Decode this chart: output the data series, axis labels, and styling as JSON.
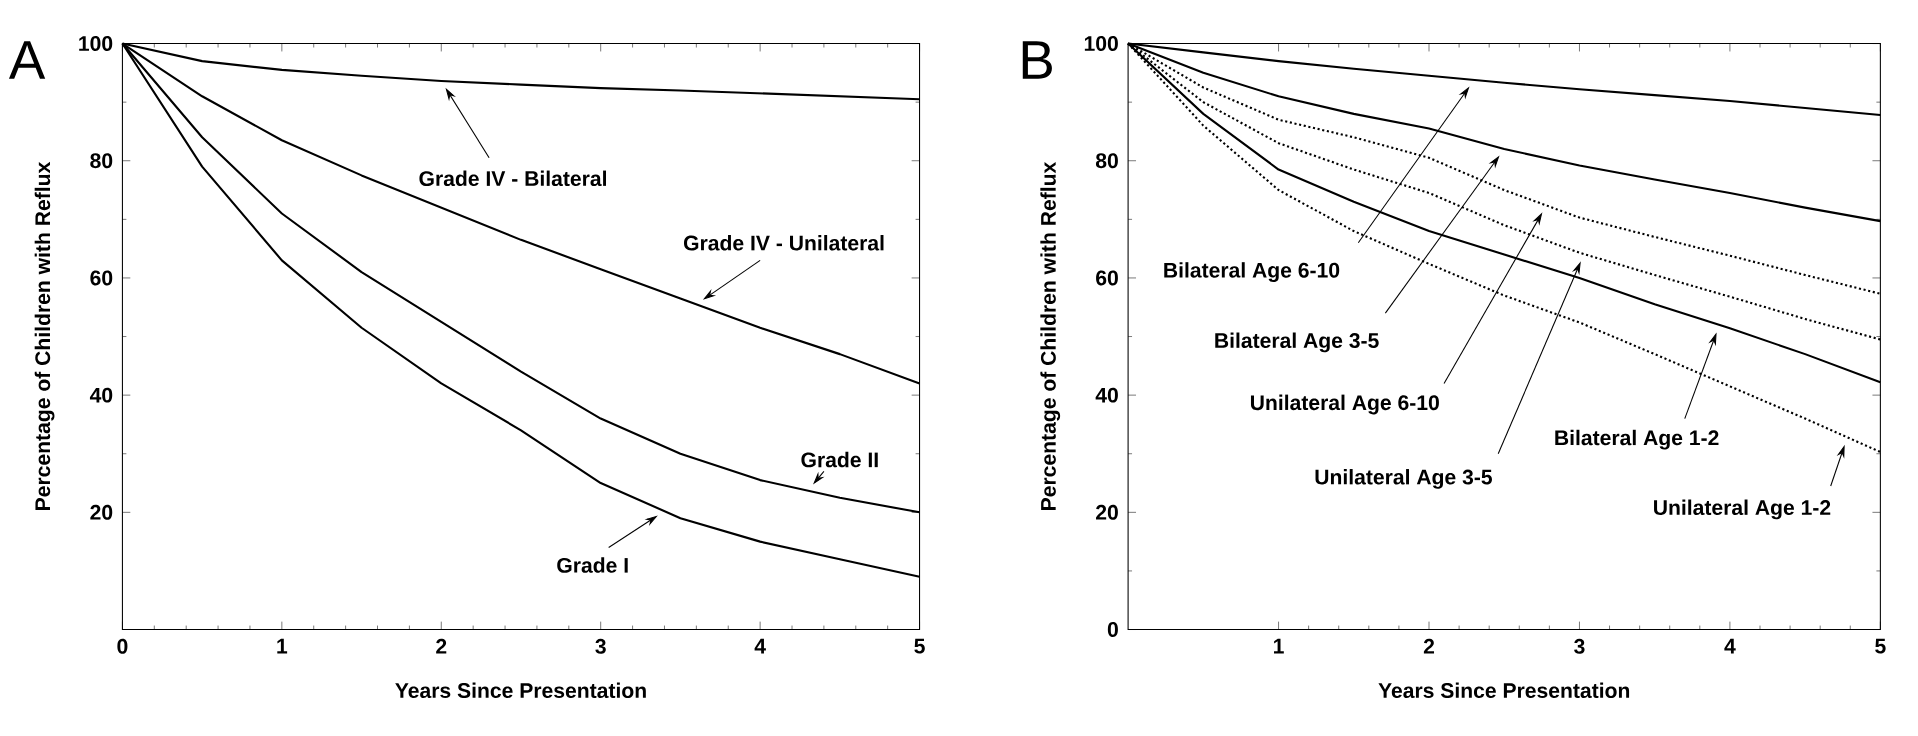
{
  "chart_data": [
    {
      "type": "line",
      "title": "A",
      "xlabel": "Years Since Presentation",
      "ylabel": "Percentage of Children with Reflux",
      "xlim": [
        0,
        5
      ],
      "ylim": [
        0,
        100
      ],
      "xticks": [
        0,
        1,
        2,
        3,
        4,
        5
      ],
      "yticks": [
        20,
        40,
        60,
        80,
        100
      ],
      "grid": false,
      "x": [
        0,
        0.5,
        1,
        1.5,
        2,
        2.5,
        3,
        3.5,
        4,
        4.5,
        5
      ],
      "series": [
        {
          "name": "Grade IV - Bilateral",
          "color": "#000000",
          "line_style": "solid",
          "values": [
            100,
            97,
            95.5,
            94.5,
            93.6,
            93,
            92.4,
            92,
            91.5,
            91,
            90.5
          ]
        },
        {
          "name": "Grade IV - Unilateral",
          "color": "#000000",
          "line_style": "solid",
          "values": [
            100,
            91,
            83.5,
            77.5,
            72,
            66.5,
            61.5,
            56.5,
            51.5,
            47,
            42
          ]
        },
        {
          "name": "Grade II",
          "color": "#000000",
          "line_style": "solid",
          "values": [
            100,
            84,
            71,
            61,
            52.5,
            44,
            36,
            30,
            25.5,
            22.5,
            20
          ]
        },
        {
          "name": "Grade I",
          "color": "#000000",
          "line_style": "solid",
          "values": [
            100,
            79,
            63,
            51.5,
            42,
            34,
            25,
            19,
            15,
            12,
            9
          ]
        }
      ]
    },
    {
      "type": "line",
      "title": "B",
      "xlabel": "Years Since Presentation",
      "ylabel": "Percentage of Children with Reflux",
      "xlim": [
        0,
        5
      ],
      "ylim": [
        0,
        100
      ],
      "xticks": [
        1,
        2,
        3,
        4,
        5
      ],
      "yticks": [
        0,
        20,
        40,
        60,
        80,
        100
      ],
      "grid": false,
      "x": [
        0,
        0.5,
        1,
        1.5,
        2,
        2.5,
        3,
        3.5,
        4,
        4.5,
        5
      ],
      "series": [
        {
          "name": "Bilateral Age 6-10",
          "color": "#000000",
          "line_style": "solid",
          "values": [
            100,
            98.5,
            97,
            95.7,
            94.5,
            93.3,
            92.2,
            91.2,
            90.2,
            89,
            87.8
          ]
        },
        {
          "name": "Bilateral Age 3-5",
          "color": "#000000",
          "line_style": "solid",
          "values": [
            100,
            95,
            91,
            88,
            85.5,
            82,
            79.2,
            76.8,
            74.5,
            72,
            69.7
          ]
        },
        {
          "name": "Unilateral Age 6-10",
          "color": "#000000",
          "line_style": "dotted",
          "values": [
            100,
            92.5,
            87,
            84,
            80.5,
            75,
            70.3,
            67,
            63.8,
            60.5,
            57.3
          ]
        },
        {
          "name": "Unilateral Age 3-5",
          "color": "#000000",
          "line_style": "dotted",
          "values": [
            100,
            90,
            83,
            78.5,
            74.5,
            69,
            64.3,
            60.5,
            56.8,
            53,
            49.5
          ]
        },
        {
          "name": "Bilateral Age 1-2",
          "color": "#000000",
          "line_style": "solid",
          "values": [
            100,
            88,
            78.5,
            73,
            68,
            64,
            60,
            55.5,
            51.4,
            47,
            42.2
          ]
        },
        {
          "name": "Unilateral Age 1-2",
          "color": "#000000",
          "line_style": "dotted",
          "values": [
            100,
            86,
            75,
            68,
            62.4,
            57,
            52.4,
            47,
            41.5,
            36,
            30.3
          ]
        }
      ]
    }
  ]
}
